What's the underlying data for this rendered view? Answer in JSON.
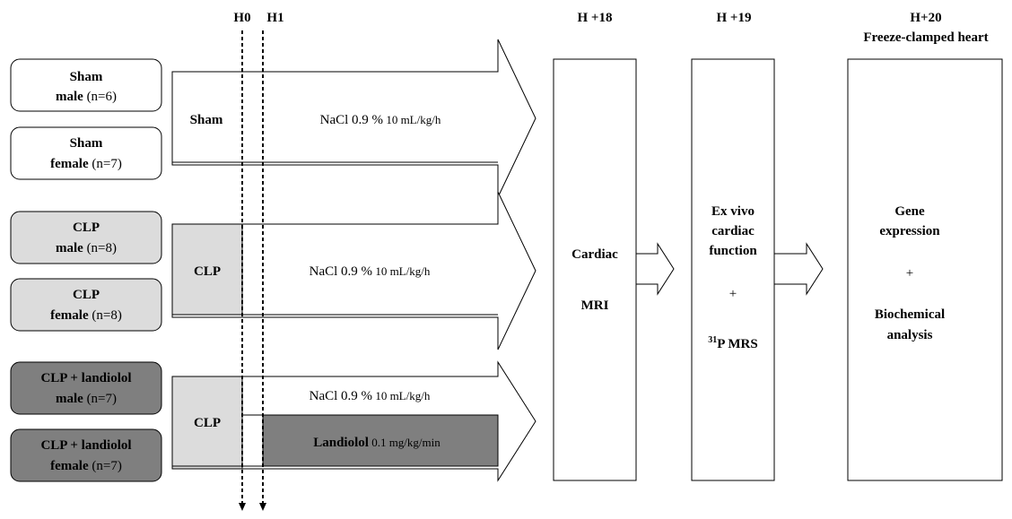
{
  "timepoints": {
    "h0": "H0",
    "h1": "H1",
    "h18": "H +18",
    "h19": "H +19",
    "h20": "H+20",
    "h20_sub": "Freeze-clamped heart"
  },
  "groups": [
    {
      "line1": "Sham",
      "line2_bold": "male",
      "line2_rest": " (n=6)",
      "shade": "white"
    },
    {
      "line1": "Sham",
      "line2_bold": "female",
      "line2_rest": " (n=7)",
      "shade": "white"
    },
    {
      "line1": "CLP",
      "line2_bold": "male",
      "line2_rest": " (n=8)",
      "shade": "light"
    },
    {
      "line1": "CLP",
      "line2_bold": "female",
      "line2_rest": " (n=8)",
      "shade": "light"
    },
    {
      "line1": "CLP + landiolol",
      "line2_bold": "male",
      "line2_rest": " (n=7)",
      "shade": "dark"
    },
    {
      "line1": "CLP + landiolol",
      "line2_bold": "female",
      "line2_rest": " (n=7)",
      "shade": "dark"
    }
  ],
  "arms": {
    "sham": {
      "label": "Sham",
      "treatment_a": "NaCl 0.9 %",
      "treatment_b": " 10 mL/kg/h"
    },
    "clp": {
      "label": "CLP",
      "treatment_a": "NaCl 0.9 %",
      "treatment_b": " 10 mL/kg/h"
    },
    "landiolol": {
      "label": "CLP",
      "top_a": "NaCl 0.9 %",
      "top_b": " 10 mL/kg/h",
      "bottom_a": "Landiolol",
      "bottom_b": " 0.1 mg/kg/min"
    }
  },
  "stages": {
    "mri": {
      "line1": "Cardiac",
      "line2": "MRI"
    },
    "exvivo": {
      "line1": "Ex vivo",
      "line2": "cardiac",
      "line3": "function",
      "plus": "+",
      "mrs_sup": "31",
      "mrs": "P MRS"
    },
    "bio": {
      "line1": "Gene",
      "line2": "expression",
      "plus": "+",
      "line3": "Biochemical",
      "line4": "analysis"
    }
  },
  "colors": {
    "light_gray": "#dcdcdc",
    "dark_gray": "#7f7f7f",
    "white": "#ffffff",
    "stroke": "#000000"
  }
}
